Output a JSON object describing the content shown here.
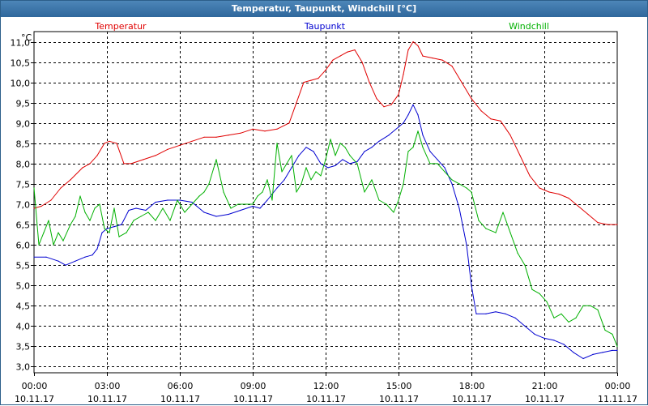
{
  "window": {
    "title": "Temperatur, Taupunkt, Windchill [°C]"
  },
  "colors": {
    "temperatur": "#e00000",
    "taupunkt": "#0000d0",
    "windchill": "#00b000",
    "grid": "#000000"
  },
  "chart_data": {
    "type": "line",
    "title": "Temperatur, Taupunkt, Windchill [°C]",
    "ylabel": "°C",
    "ylim": [
      2.85,
      11.25
    ],
    "xlim": [
      0,
      24
    ],
    "yticks": [
      11.0,
      10.5,
      10.0,
      9.5,
      9.0,
      8.5,
      8.0,
      7.5,
      7.0,
      6.5,
      6.0,
      5.5,
      5.0,
      4.5,
      4.0,
      3.5,
      3.0
    ],
    "ytick_labels": [
      "11,0",
      "10,5",
      "10,0",
      "9,5",
      "9,0",
      "8,5",
      "8,0",
      "7,5",
      "7,0",
      "6,5",
      "6,0",
      "5,5",
      "5,0",
      "4,5",
      "4,0",
      "3,5",
      "3,0"
    ],
    "xticks": [
      {
        "time": "00:00",
        "date": "10.11.17"
      },
      {
        "time": "03:00",
        "date": "10.11.17"
      },
      {
        "time": "06:00",
        "date": "10.11.17"
      },
      {
        "time": "09:00",
        "date": "10.11.17"
      },
      {
        "time": "12:00",
        "date": "10.11.17"
      },
      {
        "time": "15:00",
        "date": "10.11.17"
      },
      {
        "time": "18:00",
        "date": "10.11.17"
      },
      {
        "time": "21:00",
        "date": "10.11.17"
      },
      {
        "time": "00:00",
        "date": "11.11.17"
      }
    ],
    "series": [
      {
        "name": "Temperatur",
        "color": "#e00000",
        "legend_pos": "left",
        "x": [
          0,
          0.3,
          0.7,
          1.1,
          1.5,
          2.0,
          2.3,
          2.6,
          2.9,
          3.1,
          3.4,
          3.7,
          4.0,
          4.5,
          5.0,
          5.5,
          6.0,
          6.5,
          7.0,
          7.5,
          8.0,
          8.5,
          9.0,
          9.5,
          10.0,
          10.5,
          10.8,
          11.1,
          11.4,
          11.7,
          12.0,
          12.3,
          12.6,
          12.9,
          13.2,
          13.5,
          13.8,
          14.1,
          14.4,
          14.7,
          15.0,
          15.2,
          15.4,
          15.6,
          15.8,
          16.0,
          16.4,
          16.8,
          17.2,
          17.6,
          18.0,
          18.4,
          18.8,
          19.2,
          19.6,
          20.0,
          20.4,
          20.8,
          21.2,
          21.6,
          22.0,
          22.4,
          22.8,
          23.2,
          23.6,
          24.0
        ],
        "values": [
          6.9,
          6.95,
          7.1,
          7.4,
          7.6,
          7.9,
          8.0,
          8.2,
          8.5,
          8.55,
          8.5,
          8.0,
          8.0,
          8.1,
          8.2,
          8.35,
          8.45,
          8.55,
          8.65,
          8.65,
          8.7,
          8.75,
          8.85,
          8.8,
          8.85,
          9.0,
          9.5,
          10.0,
          10.05,
          10.1,
          10.3,
          10.55,
          10.65,
          10.75,
          10.8,
          10.5,
          10.0,
          9.6,
          9.4,
          9.45,
          9.7,
          10.2,
          10.8,
          11.0,
          10.9,
          10.65,
          10.6,
          10.55,
          10.4,
          10.0,
          9.6,
          9.3,
          9.1,
          9.05,
          8.7,
          8.2,
          7.7,
          7.4,
          7.3,
          7.25,
          7.15,
          6.95,
          6.75,
          6.55,
          6.5,
          6.5
        ]
      },
      {
        "name": "Taupunkt",
        "color": "#0000d0",
        "legend_pos": "center",
        "x": [
          0,
          0.5,
          1.0,
          1.3,
          1.7,
          2.1,
          2.4,
          2.6,
          2.8,
          3.0,
          3.3,
          3.6,
          3.9,
          4.2,
          4.6,
          5.0,
          5.5,
          6.0,
          6.5,
          7.0,
          7.5,
          8.0,
          8.5,
          9.0,
          9.3,
          9.6,
          10.0,
          10.3,
          10.6,
          10.9,
          11.2,
          11.5,
          11.8,
          12.1,
          12.4,
          12.7,
          13.0,
          13.3,
          13.6,
          13.9,
          14.2,
          14.6,
          15.0,
          15.2,
          15.4,
          15.6,
          15.8,
          16.0,
          16.3,
          16.6,
          16.9,
          17.2,
          17.5,
          17.8,
          18.0,
          18.2,
          18.6,
          19.0,
          19.4,
          19.8,
          20.2,
          20.6,
          21.0,
          21.4,
          21.8,
          22.2,
          22.6,
          23.0,
          23.4,
          23.8,
          24.0
        ],
        "values": [
          5.7,
          5.7,
          5.6,
          5.5,
          5.6,
          5.7,
          5.75,
          5.9,
          6.3,
          6.4,
          6.45,
          6.5,
          6.85,
          6.9,
          6.85,
          7.05,
          7.1,
          7.1,
          7.05,
          6.8,
          6.7,
          6.75,
          6.85,
          6.95,
          6.9,
          7.1,
          7.4,
          7.6,
          7.9,
          8.2,
          8.4,
          8.3,
          8.0,
          7.9,
          7.95,
          8.1,
          8.0,
          8.05,
          8.3,
          8.4,
          8.55,
          8.7,
          8.9,
          9.0,
          9.2,
          9.45,
          9.2,
          8.7,
          8.3,
          8.1,
          7.9,
          7.5,
          6.9,
          6.0,
          5.0,
          4.3,
          4.3,
          4.35,
          4.3,
          4.2,
          4.0,
          3.8,
          3.7,
          3.65,
          3.55,
          3.35,
          3.2,
          3.3,
          3.35,
          3.4,
          3.4
        ]
      },
      {
        "name": "Windchill",
        "color": "#00b000",
        "legend_pos": "right",
        "x": [
          0,
          0.2,
          0.4,
          0.6,
          0.8,
          1.0,
          1.2,
          1.5,
          1.7,
          1.9,
          2.1,
          2.3,
          2.5,
          2.7,
          2.9,
          3.1,
          3.3,
          3.5,
          3.8,
          4.1,
          4.4,
          4.7,
          5.0,
          5.3,
          5.6,
          5.9,
          6.2,
          6.5,
          6.8,
          7.0,
          7.2,
          7.5,
          7.8,
          8.1,
          8.4,
          8.7,
          9.0,
          9.2,
          9.4,
          9.6,
          9.8,
          10.0,
          10.2,
          10.4,
          10.6,
          10.8,
          11.0,
          11.2,
          11.4,
          11.6,
          11.8,
          12.0,
          12.2,
          12.4,
          12.6,
          12.8,
          13.0,
          13.3,
          13.6,
          13.9,
          14.2,
          14.5,
          14.8,
          15.0,
          15.2,
          15.4,
          15.6,
          15.8,
          16.0,
          16.3,
          16.6,
          16.9,
          17.2,
          17.5,
          17.8,
          18.0,
          18.3,
          18.6,
          19.0,
          19.3,
          19.6,
          19.9,
          20.2,
          20.5,
          20.8,
          21.1,
          21.4,
          21.7,
          22.0,
          22.3,
          22.6,
          22.9,
          23.2,
          23.5,
          23.8,
          24.0
        ],
        "values": [
          7.4,
          6.0,
          6.3,
          6.6,
          6.0,
          6.3,
          6.1,
          6.5,
          6.7,
          7.2,
          6.8,
          6.6,
          6.9,
          7.0,
          6.4,
          6.3,
          6.9,
          6.2,
          6.3,
          6.6,
          6.7,
          6.8,
          6.6,
          6.9,
          6.6,
          7.1,
          6.8,
          7.0,
          7.2,
          7.3,
          7.5,
          8.1,
          7.3,
          6.9,
          7.0,
          7.0,
          7.0,
          7.2,
          7.3,
          7.6,
          7.1,
          8.5,
          7.8,
          8.0,
          8.2,
          7.3,
          7.5,
          7.9,
          7.6,
          7.8,
          7.7,
          8.1,
          8.6,
          8.2,
          8.5,
          8.4,
          8.2,
          8.0,
          7.3,
          7.6,
          7.1,
          7.0,
          6.8,
          7.1,
          7.5,
          8.3,
          8.4,
          8.8,
          8.4,
          8.0,
          8.0,
          7.8,
          7.6,
          7.5,
          7.4,
          7.3,
          6.6,
          6.4,
          6.3,
          6.8,
          6.3,
          5.8,
          5.5,
          4.9,
          4.8,
          4.6,
          4.2,
          4.3,
          4.1,
          4.2,
          4.5,
          4.5,
          4.4,
          3.9,
          3.8,
          3.5
        ]
      }
    ]
  }
}
